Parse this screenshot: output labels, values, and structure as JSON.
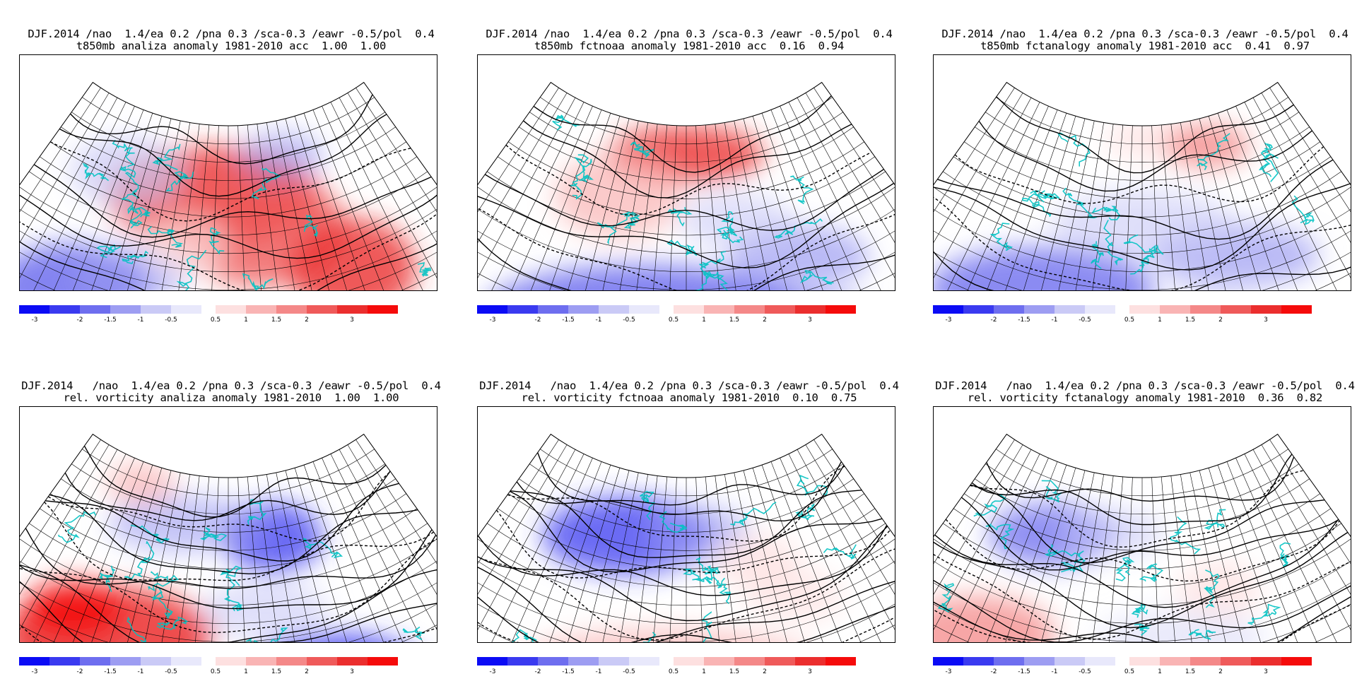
{
  "panels": [
    {
      "title_line1": "DJF.2014 /nao  1.4/ea 0.2 /pna 0.3 /sca-0.3 /eawr -0.5/pol  0.4",
      "title_line2": "t850mb analiza anomaly 1981-2010 acc  1.00  1.00",
      "pattern": "t-analysis"
    },
    {
      "title_line1": "DJF.2014 /nao  1.4/ea 0.2 /pna 0.3 /sca-0.3 /eawr -0.5/pol  0.4",
      "title_line2": "t850mb fctnoaa anomaly 1981-2010 acc  0.16  0.94",
      "pattern": "t-noaa"
    },
    {
      "title_line1": "DJF.2014 /nao  1.4/ea 0.2 /pna 0.3 /sca-0.3 /eawr -0.5/pol  0.4",
      "title_line2": "t850mb fctanalogy anomaly 1981-2010 acc  0.41  0.97",
      "pattern": "t-analogy"
    },
    {
      "title_line1": "DJF.2014   /nao  1.4/ea 0.2 /pna 0.3 /sca-0.3 /eawr -0.5/pol  0.4",
      "title_line2": "rel. vorticity analiza anomaly 1981-2010  1.00  1.00",
      "pattern": "v-analysis"
    },
    {
      "title_line1": "DJF.2014   /nao  1.4/ea 0.2 /pna 0.3 /sca-0.3 /eawr -0.5/pol  0.4",
      "title_line2": "rel. vorticity fctnoaa anomaly 1981-2010  0.10  0.75",
      "pattern": "v-noaa"
    },
    {
      "title_line1": "DJF.2014   /nao  1.4/ea 0.2 /pna 0.3 /sca-0.3 /eawr -0.5/pol  0.4",
      "title_line2": "rel. vorticity fctanalogy anomaly 1981-2010  0.36  0.82",
      "pattern": "v-analogy"
    }
  ],
  "colorbar": {
    "segments": [
      {
        "color": "#0b0bf5"
      },
      {
        "color": "#3a3af0"
      },
      {
        "color": "#6e6eef"
      },
      {
        "color": "#9d9df2"
      },
      {
        "color": "#cacaf6"
      },
      {
        "color": "#e8e8fb"
      },
      {
        "color": "#ffffff"
      },
      {
        "color": "#fde0e0"
      },
      {
        "color": "#f9b4b4"
      },
      {
        "color": "#f48888"
      },
      {
        "color": "#ef5a5a"
      },
      {
        "color": "#eb2e2e"
      },
      {
        "color": "#f50b0b"
      }
    ],
    "labels": [
      "-3",
      "-2",
      "-1.5",
      "-1",
      "-0.5",
      "0.5",
      "1",
      "1.5",
      "2",
      "3"
    ]
  },
  "colors": {
    "coastline": "#00c2c2",
    "contour": "#000000",
    "grid": "#000000"
  }
}
